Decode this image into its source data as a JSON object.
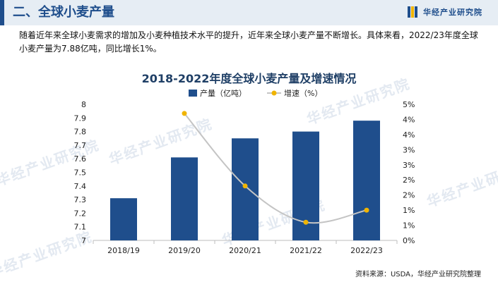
{
  "header": {
    "title": "二、全球小麦产量",
    "brand": "华经产业研究院"
  },
  "intro_text": "随着近年来全球小麦需求的增加及小麦种植技术水平的提升，近年来全球小麦产量不断增长。具体来看，2022/23年度全球小麦产量为7.88亿吨，同比增长1%。",
  "watermark": "华经产业研究院",
  "source": "资料来源：USDA，华经产业研究院整理",
  "colors": {
    "bar": "#1f4e8c",
    "line": "#c4c4c4",
    "marker": "#f0b400",
    "header_bg": "#e6edf4"
  },
  "chart_data": {
    "type": "bar",
    "title": "2018-2022年度全球小麦产量及增速情况",
    "categories": [
      "2018/19",
      "2019/20",
      "2020/21",
      "2021/22",
      "2022/23"
    ],
    "series": [
      {
        "name": "产量（亿吨）",
        "type": "bar",
        "axis": "left",
        "values": [
          7.31,
          7.61,
          7.75,
          7.8,
          7.88
        ]
      },
      {
        "name": "增速（%）",
        "type": "line",
        "axis": "right",
        "values": [
          null,
          4.2,
          1.8,
          0.6,
          1.0
        ]
      }
    ],
    "y_left": {
      "min": 7,
      "max": 8,
      "ticks": [
        "7",
        "7.1",
        "7.2",
        "7.3",
        "7.4",
        "7.5",
        "7.6",
        "7.7",
        "7.8",
        "7.9",
        "8"
      ]
    },
    "y_right": {
      "min": 0,
      "max": 4.5,
      "ticks": [
        "0%",
        "1%",
        "1%",
        "2%",
        "2%",
        "3%",
        "3%",
        "4%",
        "4%",
        "5%"
      ]
    },
    "legend_position": "top-center",
    "grid": false
  }
}
